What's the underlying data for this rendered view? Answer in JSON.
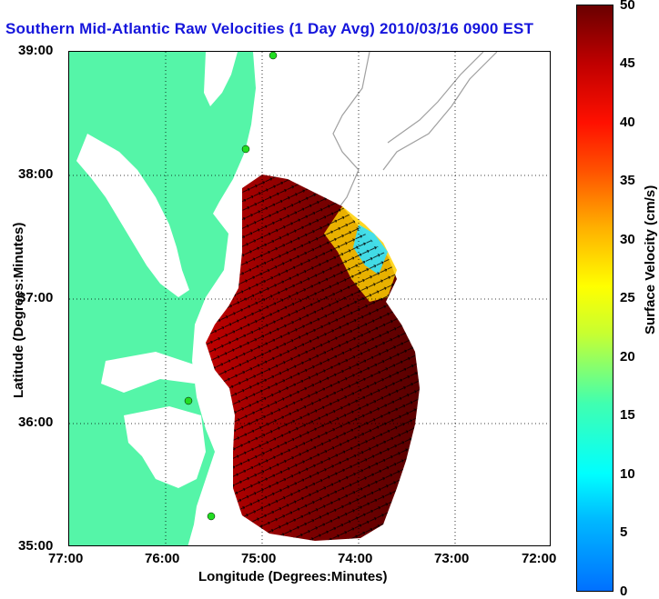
{
  "title": "Southern Mid-Atlantic Raw Velocities (1 Day Avg) 2010/03/16 0900 EST",
  "axes": {
    "xlabel": "Longitude (Degrees:Minutes)",
    "ylabel": "Latitude (Degrees:Minutes)",
    "x_ticks": [
      "77:00",
      "76:00",
      "75:00",
      "74:00",
      "73:00",
      "72:00"
    ],
    "y_ticks": [
      "39:00",
      "38:00",
      "37:00",
      "36:00",
      "35:00"
    ]
  },
  "colorbar": {
    "title": "Surface Velocity (cm/s)",
    "ticks": [
      "50",
      "45",
      "40",
      "35",
      "30",
      "25",
      "20",
      "15",
      "10",
      "5",
      "0"
    ],
    "range": [
      0,
      50
    ],
    "colors": [
      "#0070ff",
      "#00ffff",
      "#40ffb0",
      "#ffff00",
      "#ffb000",
      "#ff5000",
      "#ff1000",
      "#c00000",
      "#6a0000"
    ]
  },
  "map": {
    "land_color": "#55f5a8",
    "water_color": "#ffffff",
    "bathymetry_color": "#a0a0a0",
    "vector_color": "#000000",
    "station_color": "#22dd22",
    "lon_range": [
      -77,
      -72
    ],
    "lat_range": [
      35,
      39
    ],
    "grid": "dotted"
  }
}
